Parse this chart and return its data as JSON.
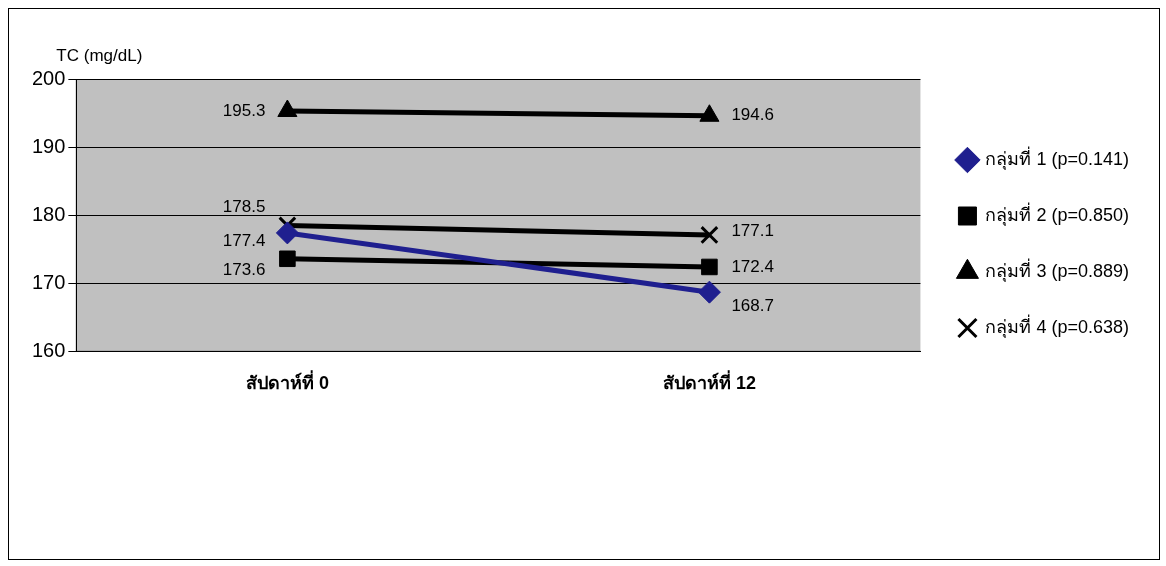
{
  "chart_data": {
    "type": "line",
    "ylabel": "TC (mg/dL)",
    "categories": [
      "สัปดาห์ที่ 0",
      "สัปดาห์ที่ 12"
    ],
    "ylim": [
      160,
      200
    ],
    "yticks": [
      160,
      170,
      180,
      190,
      200
    ],
    "grid": "y",
    "legend": "right",
    "data_labels": true,
    "series": [
      {
        "name": "กลุ่มที่ 1 (p=0.141)",
        "color": "#1f1f8f",
        "marker": "diamond",
        "values": [
          177.4,
          168.7
        ]
      },
      {
        "name": "กลุ่มที่ 2 (p=0.850)",
        "color": "#000000",
        "marker": "square",
        "values": [
          173.6,
          172.4
        ]
      },
      {
        "name": "กลุ่มที่ 3 (p=0.889)",
        "color": "#000000",
        "marker": "triangle",
        "values": [
          195.3,
          194.6
        ]
      },
      {
        "name": "กลุ่มที่ 4 (p=0.638)",
        "color": "#000000",
        "marker": "cross",
        "values": [
          178.5,
          177.1
        ]
      }
    ]
  }
}
